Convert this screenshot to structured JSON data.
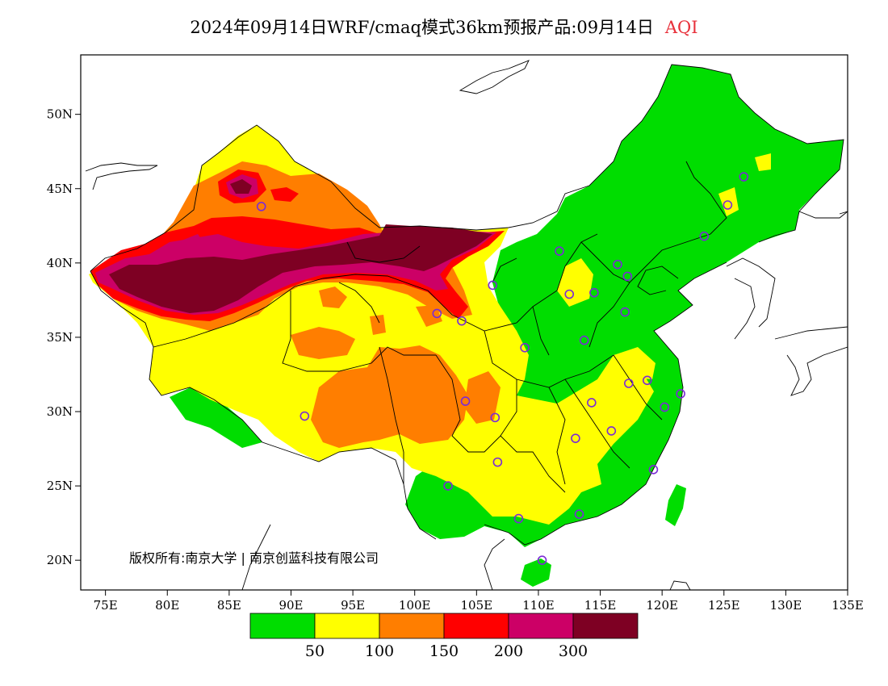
{
  "title": {
    "main": "2024年09月14日WRF/cmaq模式36km预报产品:09月14日",
    "variable": "AQI"
  },
  "lat_labels": [
    "50N",
    "45N",
    "40N",
    "35N",
    "30N",
    "25N",
    "20N"
  ],
  "lat_values": [
    50,
    45,
    40,
    35,
    30,
    25,
    20
  ],
  "lon_labels": [
    "75E",
    "80E",
    "85E",
    "90E",
    "95E",
    "100E",
    "105E",
    "110E",
    "115E",
    "120E",
    "125E",
    "130E",
    "135E"
  ],
  "lon_values": [
    75,
    80,
    85,
    90,
    95,
    100,
    105,
    110,
    115,
    120,
    125,
    130,
    135
  ],
  "extent": {
    "lon": [
      73,
      135
    ],
    "lat": [
      18,
      54
    ]
  },
  "copyright": "版权所有:南京大学 | 南京创蓝科技有限公司",
  "colorbar": {
    "colors": [
      "#00dd00",
      "#ffff00",
      "#ff7e00",
      "#ff0000",
      "#cc0066",
      "#7e0023"
    ],
    "labels": [
      "50",
      "100",
      "150",
      "200",
      "300"
    ]
  },
  "city_markers": [
    {
      "lon": 116.4,
      "lat": 39.9
    },
    {
      "lon": 117.2,
      "lat": 39.1
    },
    {
      "lon": 114.5,
      "lat": 38.0
    },
    {
      "lon": 112.5,
      "lat": 37.9
    },
    {
      "lon": 111.7,
      "lat": 40.8
    },
    {
      "lon": 106.3,
      "lat": 38.5
    },
    {
      "lon": 103.8,
      "lat": 36.1
    },
    {
      "lon": 101.8,
      "lat": 36.6
    },
    {
      "lon": 87.6,
      "lat": 43.8
    },
    {
      "lon": 91.1,
      "lat": 29.7
    },
    {
      "lon": 104.1,
      "lat": 30.7
    },
    {
      "lon": 106.5,
      "lat": 29.6
    },
    {
      "lon": 106.7,
      "lat": 26.6
    },
    {
      "lon": 102.7,
      "lat": 25.0
    },
    {
      "lon": 108.4,
      "lat": 22.8
    },
    {
      "lon": 113.3,
      "lat": 23.1
    },
    {
      "lon": 110.3,
      "lat": 20.0
    },
    {
      "lon": 113.0,
      "lat": 28.2
    },
    {
      "lon": 115.9,
      "lat": 28.7
    },
    {
      "lon": 114.3,
      "lat": 30.6
    },
    {
      "lon": 117.3,
      "lat": 31.9
    },
    {
      "lon": 118.8,
      "lat": 32.1
    },
    {
      "lon": 120.2,
      "lat": 30.3
    },
    {
      "lon": 121.5,
      "lat": 31.2
    },
    {
      "lon": 119.3,
      "lat": 26.1
    },
    {
      "lon": 113.7,
      "lat": 34.8
    },
    {
      "lon": 117.0,
      "lat": 36.7
    },
    {
      "lon": 108.9,
      "lat": 34.3
    },
    {
      "lon": 123.4,
      "lat": 41.8
    },
    {
      "lon": 125.3,
      "lat": 43.9
    },
    {
      "lon": 126.6,
      "lat": 45.8
    }
  ]
}
